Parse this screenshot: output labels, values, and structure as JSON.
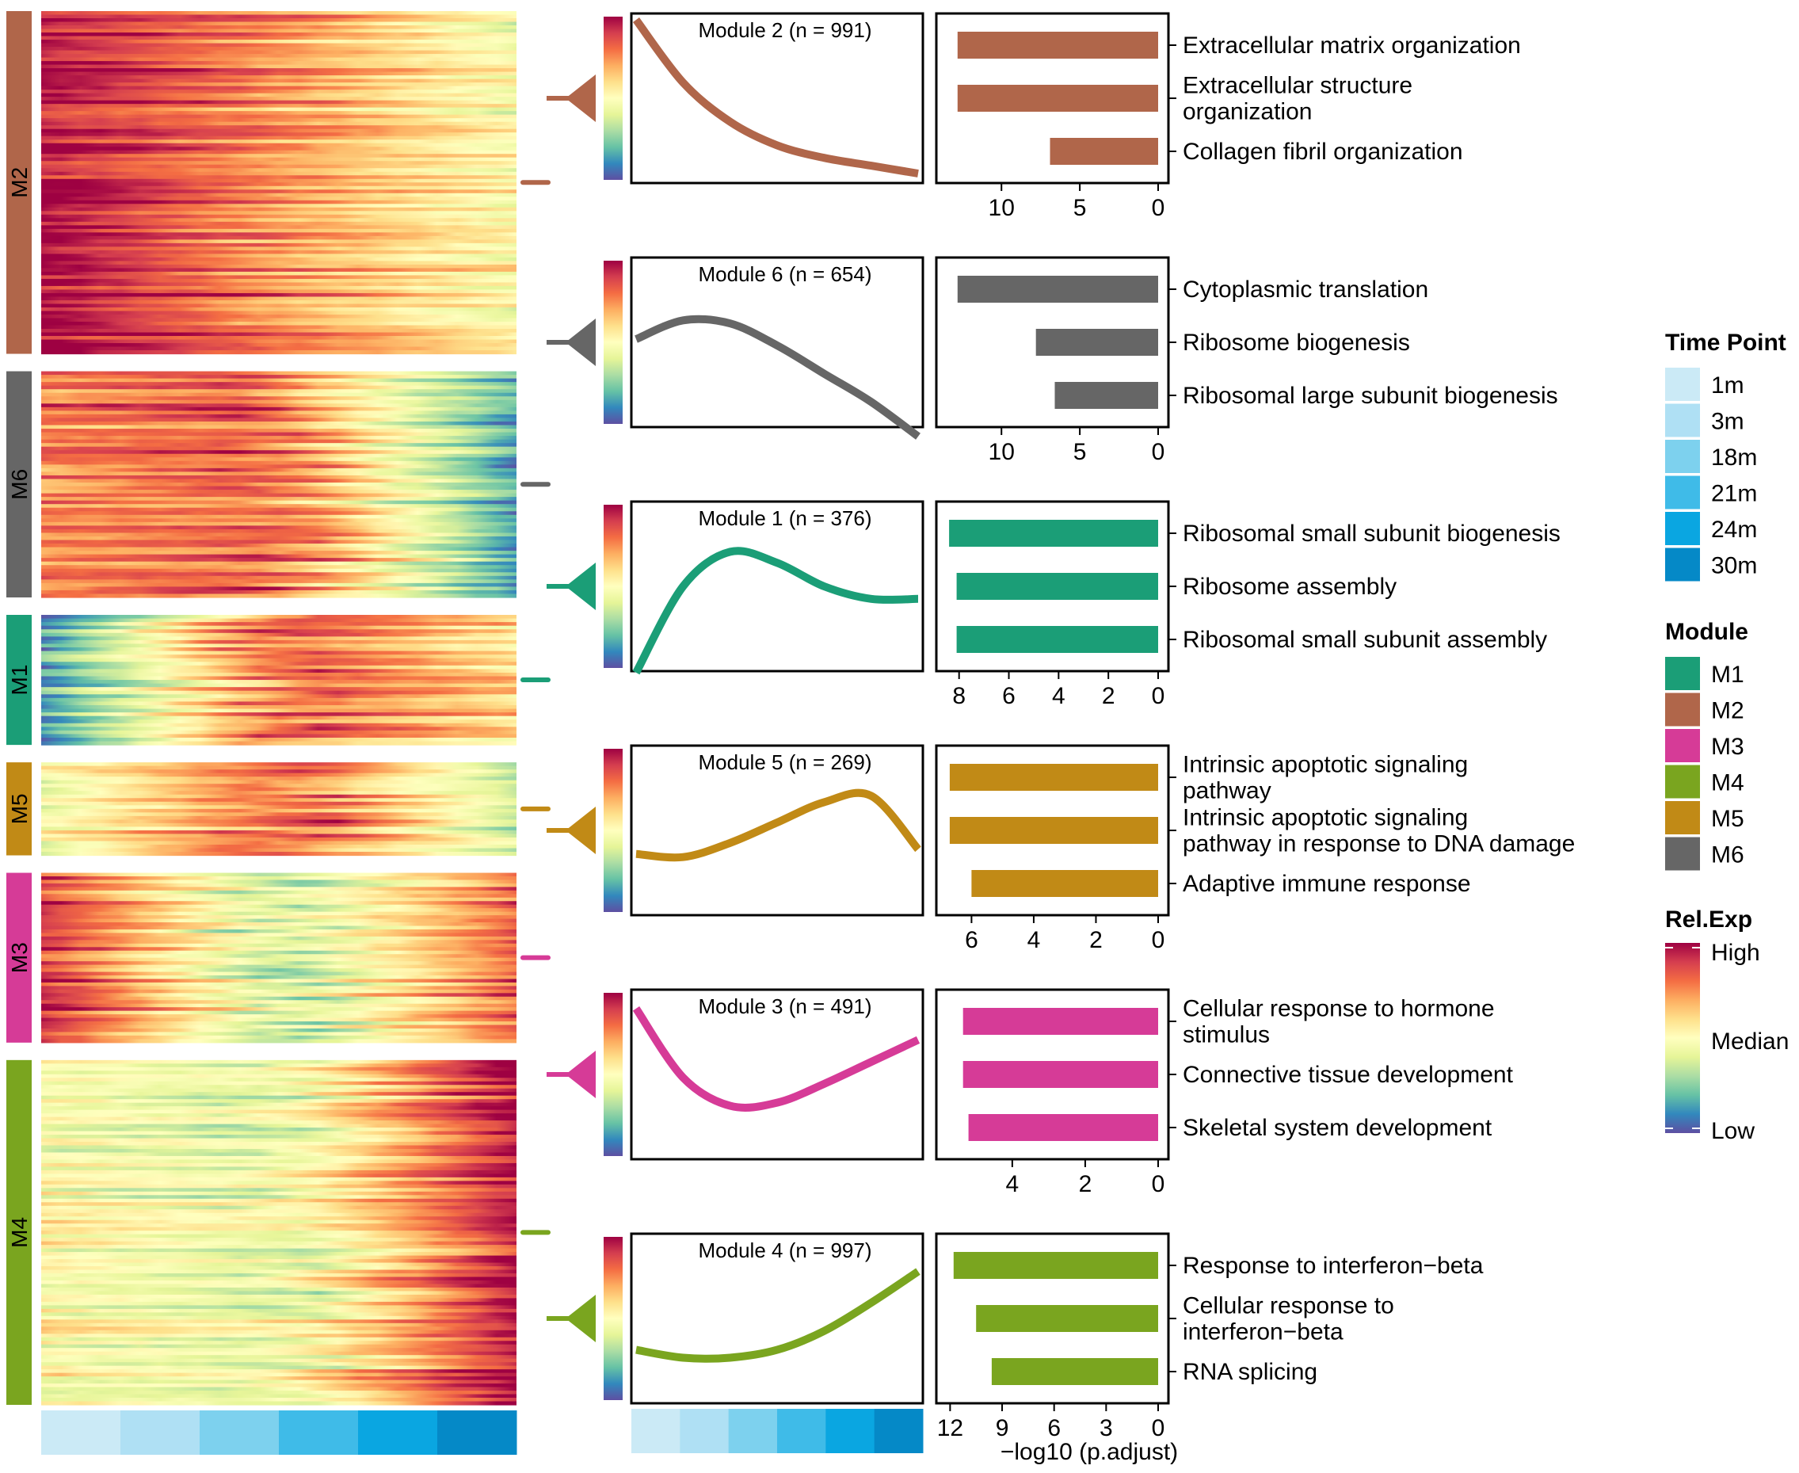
{
  "legend": {
    "time_title": "Time Point",
    "module_title": "Module",
    "relexp_title": "Rel.Exp",
    "relexp_labels": [
      "High",
      "Median",
      "Low"
    ],
    "xaxis_label": "−log10 (p.adjust)"
  },
  "colors": {
    "time": [
      "#cbeaf6",
      "#afe0f4",
      "#7dd1ee",
      "#3fbbe8",
      "#0aa6e1",
      "#0589c7"
    ],
    "spectral": [
      "#5e4fa2",
      "#3288bd",
      "#66c2a5",
      "#abdda4",
      "#e6f598",
      "#ffffbf",
      "#fee08b",
      "#fdae61",
      "#f46d43",
      "#d53e4f",
      "#9e0142"
    ]
  },
  "chart_data": {
    "type": "heatmap",
    "time_points": [
      {
        "label": "1m",
        "color": "#cbeaf6"
      },
      {
        "label": "3m",
        "color": "#afe0f4"
      },
      {
        "label": "18m",
        "color": "#7dd1ee"
      },
      {
        "label": "21m",
        "color": "#3fbbe8"
      },
      {
        "label": "24m",
        "color": "#0aa6e1"
      },
      {
        "label": "30m",
        "color": "#0589c7"
      }
    ],
    "module_legend": [
      {
        "label": "M1",
        "color": "#1b9e77"
      },
      {
        "label": "M2",
        "color": "#b0664a"
      },
      {
        "label": "M3",
        "color": "#d63b97"
      },
      {
        "label": "M4",
        "color": "#7aa51f"
      },
      {
        "label": "M5",
        "color": "#c18a16"
      },
      {
        "label": "M6",
        "color": "#666666"
      }
    ],
    "heatmap_blocks": [
      {
        "label": "M2",
        "color": "#b0664a",
        "rows": 991,
        "profile": [
          0.95,
          0.5,
          0.0
        ]
      },
      {
        "label": "M6",
        "color": "#666666",
        "rows": 654,
        "profile": [
          0.55,
          0.7,
          -0.7
        ]
      },
      {
        "label": "M1",
        "color": "#1b9e77",
        "rows": 376,
        "profile": [
          -0.7,
          0.65,
          0.2
        ]
      },
      {
        "label": "M5",
        "color": "#c18a16",
        "rows": 269,
        "profile": [
          -0.1,
          0.65,
          -0.35
        ]
      },
      {
        "label": "M3",
        "color": "#d63b97",
        "rows": 491,
        "profile": [
          0.8,
          -0.35,
          0.65
        ]
      },
      {
        "label": "M4",
        "color": "#7aa51f",
        "rows": 997,
        "profile": [
          0.0,
          -0.15,
          0.95
        ]
      }
    ],
    "modules": [
      {
        "label": "Module 2 (n = 991)",
        "color": "#b0664a",
        "trend": [
          1.0,
          0.6,
          0.35,
          0.2,
          0.12,
          0.07,
          0.02
        ],
        "xlim": [
          0,
          13.5
        ],
        "ticks": [
          10,
          5,
          0
        ],
        "terms": [
          {
            "label": [
              "Extracellular matrix organization"
            ],
            "value": 12.8
          },
          {
            "label": [
              "Extracellular structure",
              "organization"
            ],
            "value": 12.8
          },
          {
            "label": [
              "Collagen fibril organization"
            ],
            "value": 6.9
          }
        ]
      },
      {
        "label": "Module 6 (n = 654)",
        "color": "#666666",
        "trend": [
          0.52,
          0.64,
          0.62,
          0.48,
          0.3,
          0.12,
          -0.1
        ],
        "xlim": [
          0,
          13.5
        ],
        "ticks": [
          10,
          5,
          0
        ],
        "terms": [
          {
            "label": [
              "Cytoplasmic translation"
            ],
            "value": 12.8
          },
          {
            "label": [
              "Ribosome biogenesis"
            ],
            "value": 7.8
          },
          {
            "label": [
              "Ribosomal large subunit biogenesis"
            ],
            "value": 6.6
          }
        ]
      },
      {
        "label": "Module 1 (n = 376)",
        "color": "#1b9e77",
        "trend": [
          -0.05,
          0.5,
          0.72,
          0.65,
          0.5,
          0.42,
          0.42
        ],
        "xlim": [
          0,
          8.5
        ],
        "ticks": [
          8,
          6,
          4,
          2,
          0
        ],
        "terms": [
          {
            "label": [
              "Ribosomal small subunit biogenesis"
            ],
            "value": 8.4
          },
          {
            "label": [
              "Ribosome assembly"
            ],
            "value": 8.1
          },
          {
            "label": [
              "Ribosomal small subunit assembly"
            ],
            "value": 8.1
          }
        ]
      },
      {
        "label": "Module 5 (n = 269)",
        "color": "#c18a16",
        "trend": [
          0.35,
          0.33,
          0.42,
          0.55,
          0.68,
          0.72,
          0.38
        ],
        "xlim": [
          0,
          6.8
        ],
        "ticks": [
          6,
          4,
          2,
          0
        ],
        "terms": [
          {
            "label": [
              "Intrinsic apoptotic signaling",
              "pathway"
            ],
            "value": 6.7
          },
          {
            "label": [
              "Intrinsic apoptotic signaling",
              "pathway in response to DNA damage"
            ],
            "value": 6.7
          },
          {
            "label": [
              "Adaptive immune response"
            ],
            "value": 6.0
          }
        ]
      },
      {
        "label": "Module 3 (n = 491)",
        "color": "#d63b97",
        "trend": [
          0.92,
          0.48,
          0.3,
          0.32,
          0.44,
          0.58,
          0.72
        ],
        "xlim": [
          0,
          5.8
        ],
        "ticks": [
          4,
          2,
          0
        ],
        "terms": [
          {
            "label": [
              "Cellular response to hormone",
              "stimulus"
            ],
            "value": 5.35
          },
          {
            "label": [
              "Connective tissue development"
            ],
            "value": 5.35
          },
          {
            "label": [
              "Skeletal system development"
            ],
            "value": 5.2
          }
        ]
      },
      {
        "label": "Module 4 (n = 997)",
        "color": "#7aa51f",
        "trend": [
          0.3,
          0.25,
          0.25,
          0.3,
          0.42,
          0.6,
          0.8
        ],
        "xlim": [
          0,
          12.2
        ],
        "ticks": [
          12,
          9,
          6,
          3,
          0
        ],
        "terms": [
          {
            "label": [
              "Response to interferon−beta"
            ],
            "value": 11.8
          },
          {
            "label": [
              "Cellular response to",
              "interferon−beta"
            ],
            "value": 10.5
          },
          {
            "label": [
              "RNA splicing"
            ],
            "value": 9.6
          }
        ]
      }
    ]
  }
}
